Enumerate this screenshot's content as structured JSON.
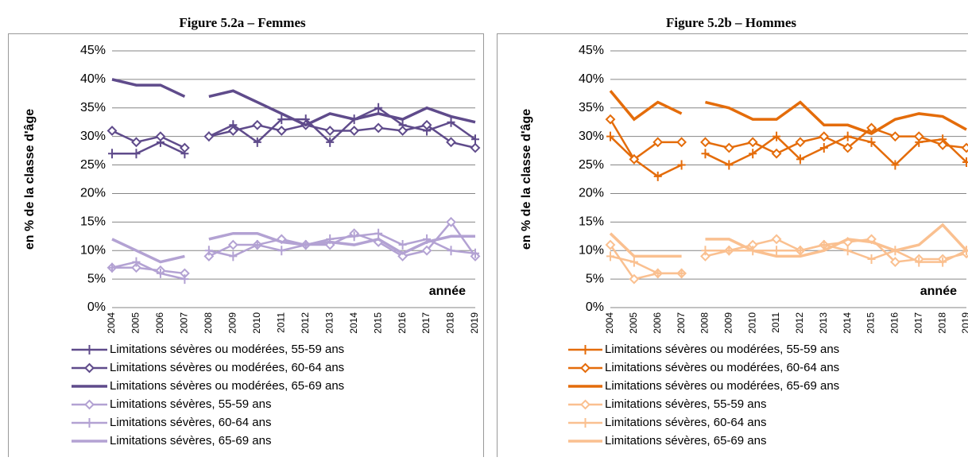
{
  "chart_data": [
    {
      "type": "line",
      "title": "Figure 5.2a – Femmes",
      "ylabel": "en % de la classe d'âge",
      "annotation": "année",
      "categories": [
        "2004",
        "2005",
        "2006",
        "2007",
        "2008",
        "2009",
        "2010",
        "2011",
        "2012",
        "2013",
        "2014",
        "2015",
        "2016",
        "2017",
        "2018",
        "2019"
      ],
      "line_break_after": "2007",
      "ylim": [
        0,
        45
      ],
      "yticks": [
        {
          "value": 0,
          "label": "0%"
        },
        {
          "value": 5,
          "label": "5%"
        },
        {
          "value": 10,
          "label": "10%"
        },
        {
          "value": 15,
          "label": "15%"
        },
        {
          "value": 20,
          "label": "20%"
        },
        {
          "value": 25,
          "label": "25%"
        },
        {
          "value": 30,
          "label": "30%"
        },
        {
          "value": 35,
          "label": "35%"
        },
        {
          "value": 40,
          "label": "40%"
        },
        {
          "value": 45,
          "label": "45%"
        }
      ],
      "grid": true,
      "series": [
        {
          "name": "Limitations sévères ou modérées, 55-59 ans",
          "color": "#5f4b8b",
          "marker": "plus",
          "style": "normal",
          "values": [
            27,
            27,
            29,
            27,
            30,
            32,
            29,
            33,
            33,
            29,
            33,
            35,
            32,
            31,
            32.5,
            29.5
          ]
        },
        {
          "name": "Limitations sévères ou modérées, 60-64 ans",
          "color": "#5f4b8b",
          "marker": "diamond",
          "style": "normal",
          "values": [
            31,
            29,
            30,
            28,
            30,
            31,
            32,
            31,
            32,
            31,
            31,
            31.5,
            31,
            32,
            29,
            28
          ]
        },
        {
          "name": "Limitations sévères ou modérées, 65-69 ans",
          "color": "#5f4b8b",
          "marker": "none",
          "style": "thick",
          "values": [
            40,
            39,
            39,
            37,
            37,
            38,
            36,
            34,
            32,
            34,
            33,
            34,
            33,
            35,
            33.5,
            32.5
          ]
        },
        {
          "name": "Limitations sévères, 55-59 ans",
          "color": "#b3a2d3",
          "marker": "diamond",
          "style": "normal",
          "values": [
            7,
            7,
            6.5,
            6,
            9,
            11,
            11,
            12,
            11,
            11,
            13,
            11.5,
            9,
            10,
            15,
            9
          ]
        },
        {
          "name": "Limitations sévères, 60-64 ans",
          "color": "#b3a2d3",
          "marker": "plus",
          "style": "normal",
          "values": [
            7,
            8,
            6,
            5,
            10,
            9,
            11,
            10,
            11,
            12,
            12.5,
            13,
            11,
            12,
            10,
            9.5
          ]
        },
        {
          "name": "Limitations sévères, 65-69 ans",
          "color": "#b3a2d3",
          "marker": "none",
          "style": "thick",
          "values": [
            12,
            10,
            8,
            9,
            12,
            13,
            13,
            11.5,
            11,
            11.5,
            11,
            12,
            9.5,
            11.5,
            12.5,
            12.5
          ]
        }
      ]
    },
    {
      "type": "line",
      "title": "Figure 5.2b – Hommes",
      "ylabel": "en % de la classe d'âge",
      "annotation": "année",
      "categories": [
        "2004",
        "2005",
        "2006",
        "2007",
        "2008",
        "2009",
        "2010",
        "2011",
        "2012",
        "2013",
        "2014",
        "2015",
        "2016",
        "2017",
        "2018",
        "2019"
      ],
      "line_break_after": "2007",
      "ylim": [
        0,
        45
      ],
      "yticks": [
        {
          "value": 0,
          "label": "0%"
        },
        {
          "value": 5,
          "label": "5%"
        },
        {
          "value": 10,
          "label": "10%"
        },
        {
          "value": 15,
          "label": "15%"
        },
        {
          "value": 20,
          "label": "20%"
        },
        {
          "value": 25,
          "label": "25%"
        },
        {
          "value": 30,
          "label": "30%"
        },
        {
          "value": 35,
          "label": "35%"
        },
        {
          "value": 40,
          "label": "40%"
        },
        {
          "value": 45,
          "label": "45%"
        }
      ],
      "grid": true,
      "series": [
        {
          "name": "Limitations sévères ou modérées, 55-59 ans",
          "color": "#e46c0a",
          "marker": "plus",
          "style": "normal",
          "values": [
            30,
            26,
            23,
            25,
            27,
            25,
            27,
            30,
            26,
            28,
            30,
            29,
            25,
            29,
            29.5,
            25.5
          ]
        },
        {
          "name": "Limitations sévères ou modérées, 60-64 ans",
          "color": "#e46c0a",
          "marker": "diamond",
          "style": "normal",
          "values": [
            33,
            26,
            29,
            29,
            29,
            28,
            29,
            27,
            29,
            30,
            28,
            31.5,
            30,
            30,
            28.5,
            28
          ]
        },
        {
          "name": "Limitations sévères ou modérées, 65-69 ans",
          "color": "#e46c0a",
          "marker": "none",
          "style": "thick",
          "values": [
            38,
            33,
            36,
            34,
            36,
            35,
            33,
            33,
            36,
            32,
            32,
            30.5,
            33,
            34,
            33.5,
            31.2
          ]
        },
        {
          "name": "Limitations sévères, 55-59 ans",
          "color": "#fac090",
          "marker": "diamond",
          "style": "normal",
          "values": [
            11,
            5,
            6,
            6,
            9,
            10,
            11,
            12,
            10,
            11,
            11.5,
            12,
            8,
            8.5,
            8.5,
            9.5
          ]
        },
        {
          "name": "Limitations sévères, 60-64 ans",
          "color": "#fac090",
          "marker": "plus",
          "style": "normal",
          "values": [
            9,
            8,
            6,
            6,
            10,
            10,
            10,
            10,
            10,
            11,
            10,
            8.5,
            10,
            8,
            8,
            10
          ]
        },
        {
          "name": "Limitations sévères, 65-69 ans",
          "color": "#fac090",
          "marker": "none",
          "style": "thick",
          "values": [
            13,
            9,
            9,
            9,
            12,
            12,
            10,
            9,
            9,
            10,
            12,
            11.5,
            10,
            11,
            14.5,
            10
          ]
        }
      ]
    }
  ]
}
